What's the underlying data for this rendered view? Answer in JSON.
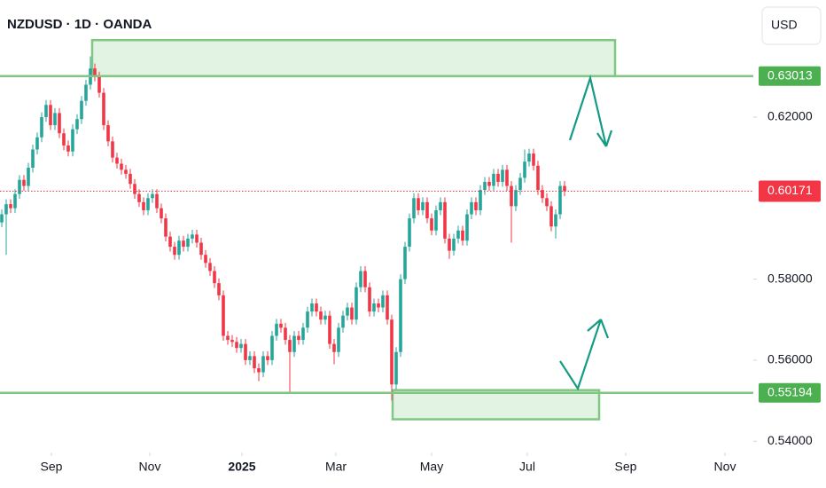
{
  "chart_data": {
    "type": "candlestick",
    "title": "NZDUSD · 1D · OANDA",
    "currency": "USD",
    "up_color": "#26a69a",
    "down_color": "#f23645",
    "level_color": "#81c784",
    "zone_color": "#e3f3e3",
    "ylim": [
      0.5372,
      0.6489
    ],
    "xlim": [
      -0.4,
      169.6
    ],
    "yticks": [
      {
        "value": 0.54,
        "label": "0.54000"
      },
      {
        "value": 0.56,
        "label": "0.56000"
      },
      {
        "value": 0.58,
        "label": "0.58000"
      },
      {
        "value": 0.62,
        "label": "0.62000"
      }
    ],
    "xticks": [
      {
        "value": 11.2,
        "label": "Sep"
      },
      {
        "value": 33.4,
        "label": "Nov"
      },
      {
        "value": 54.2,
        "label": "2025"
      },
      {
        "value": 75.4,
        "label": "Mar"
      },
      {
        "value": 97,
        "label": "May"
      },
      {
        "value": 118.6,
        "label": "Jul"
      },
      {
        "value": 140.8,
        "label": "Sep"
      },
      {
        "value": 163.2,
        "label": "Nov"
      }
    ],
    "levels": [
      {
        "value": 0.63013,
        "label": "0.63013"
      },
      {
        "value": 0.55194,
        "label": "0.55194"
      }
    ],
    "last_price": {
      "value": 0.60171,
      "label": "0.60171"
    },
    "zones": [
      {
        "x": [
          20.4,
          138.4
        ],
        "y": [
          0.6301,
          0.639
        ]
      },
      {
        "x": [
          88.2,
          134.8
        ],
        "y": [
          0.5454,
          0.5526
        ]
      }
    ],
    "open": [
      0.594,
      0.596,
      0.5985,
      0.5975,
      0.601,
      0.6045,
      0.603,
      0.6075,
      0.612,
      0.615,
      0.62,
      0.623,
      0.618,
      0.621,
      0.616,
      0.613,
      0.6115,
      0.617,
      0.6195,
      0.624,
      0.628,
      0.632,
      0.63,
      0.626,
      0.618,
      0.614,
      0.61,
      0.6085,
      0.607,
      0.606,
      0.6035,
      0.601,
      0.599,
      0.597,
      0.6,
      0.601,
      0.5975,
      0.595,
      0.5905,
      0.588,
      0.586,
      0.5895,
      0.588,
      0.59,
      0.591,
      0.589,
      0.586,
      0.584,
      0.582,
      0.579,
      0.576,
      0.566,
      0.565,
      0.5645,
      0.563,
      0.564,
      0.56,
      0.561,
      0.558,
      0.557,
      0.561,
      0.56,
      0.566,
      0.569,
      0.568,
      0.565,
      0.562,
      0.566,
      0.565,
      0.568,
      0.572,
      0.574,
      0.572,
      0.57,
      0.571,
      0.564,
      0.562,
      0.568,
      0.571,
      0.573,
      0.57,
      0.578,
      0.582,
      0.578,
      0.572,
      0.574,
      0.573,
      0.576,
      0.57,
      0.554,
      0.562,
      0.58,
      0.588,
      0.595,
      0.6,
      0.597,
      0.599,
      0.595,
      0.592,
      0.597,
      0.599,
      0.59,
      0.587,
      0.59,
      0.592,
      0.5895,
      0.596,
      0.599,
      0.597,
      0.602,
      0.604,
      0.603,
      0.606,
      0.604,
      0.607,
      0.603,
      0.598,
      0.602,
      0.605,
      0.609,
      0.611,
      0.608,
      0.602,
      0.6,
      0.598,
      0.593,
      0.596,
      0.603
    ],
    "high": [
      0.5972,
      0.5997,
      0.5997,
      0.6022,
      0.6057,
      0.6057,
      0.6087,
      0.6132,
      0.6162,
      0.6212,
      0.6242,
      0.6242,
      0.6222,
      0.6222,
      0.6172,
      0.6142,
      0.6182,
      0.6207,
      0.6252,
      0.6292,
      0.635,
      0.6332,
      0.6312,
      0.6272,
      0.6192,
      0.6152,
      0.6112,
      0.6097,
      0.6082,
      0.6072,
      0.6047,
      0.6022,
      0.6002,
      0.6012,
      0.6022,
      0.6022,
      0.5987,
      0.5962,
      0.5917,
      0.5892,
      0.5907,
      0.5907,
      0.5912,
      0.5922,
      0.5922,
      0.5902,
      0.5872,
      0.5852,
      0.5832,
      0.5802,
      0.5772,
      0.5672,
      0.5662,
      0.5657,
      0.5652,
      0.5652,
      0.5622,
      0.5622,
      0.5592,
      0.5622,
      0.5622,
      0.5672,
      0.5702,
      0.5702,
      0.5692,
      0.5662,
      0.5672,
      0.5672,
      0.5692,
      0.5732,
      0.5752,
      0.5752,
      0.5732,
      0.5722,
      0.5722,
      0.5652,
      0.5692,
      0.5722,
      0.5742,
      0.5742,
      0.5792,
      0.5832,
      0.5832,
      0.5792,
      0.5752,
      0.5752,
      0.5772,
      0.5772,
      0.5712,
      0.5632,
      0.5812,
      0.5892,
      0.5962,
      0.6012,
      0.6012,
      0.6002,
      0.6002,
      0.5962,
      0.5982,
      0.6002,
      0.6002,
      0.5912,
      0.5912,
      0.5932,
      0.5932,
      0.5972,
      0.6002,
      0.6002,
      0.6032,
      0.6052,
      0.6052,
      0.6072,
      0.6072,
      0.6082,
      0.6082,
      0.6042,
      0.6032,
      0.6062,
      0.612,
      0.6122,
      0.6122,
      0.6092,
      0.6032,
      0.6012,
      0.5992,
      0.5972,
      0.6042,
      0.6042
    ],
    "low": [
      0.5928,
      0.586,
      0.5963,
      0.5963,
      0.5998,
      0.6018,
      0.6018,
      0.6063,
      0.6108,
      0.6138,
      0.6188,
      0.6168,
      0.6168,
      0.6148,
      0.6118,
      0.6103,
      0.6103,
      0.6158,
      0.6183,
      0.6228,
      0.6268,
      0.6288,
      0.6248,
      0.6168,
      0.6128,
      0.6088,
      0.6073,
      0.6058,
      0.6048,
      0.6023,
      0.5998,
      0.5978,
      0.5958,
      0.5958,
      0.5988,
      0.5963,
      0.5938,
      0.5893,
      0.5868,
      0.5848,
      0.5848,
      0.5868,
      0.5868,
      0.5888,
      0.5878,
      0.5848,
      0.5828,
      0.5808,
      0.5778,
      0.5748,
      0.5648,
      0.5638,
      0.5633,
      0.5618,
      0.5618,
      0.5588,
      0.5588,
      0.5568,
      0.5548,
      0.5558,
      0.5588,
      0.5588,
      0.5648,
      0.5668,
      0.5638,
      0.552,
      0.5608,
      0.5638,
      0.5638,
      0.5668,
      0.5708,
      0.5708,
      0.5688,
      0.5688,
      0.5628,
      0.559,
      0.5608,
      0.5668,
      0.5698,
      0.5688,
      0.5688,
      0.5768,
      0.5768,
      0.5708,
      0.5708,
      0.5718,
      0.5718,
      0.5688,
      0.55,
      0.5528,
      0.5608,
      0.5788,
      0.5868,
      0.5938,
      0.5958,
      0.5958,
      0.5938,
      0.5908,
      0.5908,
      0.5958,
      0.5888,
      0.585,
      0.5858,
      0.5888,
      0.5883,
      0.5883,
      0.5948,
      0.5958,
      0.5958,
      0.6008,
      0.6018,
      0.6018,
      0.6028,
      0.6028,
      0.6018,
      0.589,
      0.5968,
      0.6008,
      0.6038,
      0.6078,
      0.6068,
      0.6008,
      0.5988,
      0.5968,
      0.5918,
      0.59,
      0.5948,
      0.6005
    ],
    "close": [
      0.596,
      0.5985,
      0.5975,
      0.601,
      0.6045,
      0.603,
      0.6075,
      0.612,
      0.615,
      0.62,
      0.623,
      0.618,
      0.621,
      0.616,
      0.613,
      0.6115,
      0.617,
      0.6195,
      0.624,
      0.628,
      0.632,
      0.63,
      0.626,
      0.618,
      0.614,
      0.61,
      0.6085,
      0.607,
      0.606,
      0.6035,
      0.601,
      0.599,
      0.597,
      0.6,
      0.601,
      0.5975,
      0.595,
      0.5905,
      0.588,
      0.586,
      0.5895,
      0.588,
      0.59,
      0.591,
      0.589,
      0.586,
      0.584,
      0.582,
      0.579,
      0.576,
      0.566,
      0.565,
      0.5645,
      0.563,
      0.564,
      0.56,
      0.561,
      0.558,
      0.557,
      0.561,
      0.56,
      0.566,
      0.569,
      0.568,
      0.565,
      0.562,
      0.566,
      0.565,
      0.568,
      0.572,
      0.574,
      0.572,
      0.57,
      0.571,
      0.564,
      0.562,
      0.568,
      0.571,
      0.573,
      0.57,
      0.578,
      0.582,
      0.578,
      0.572,
      0.574,
      0.573,
      0.576,
      0.57,
      0.554,
      0.562,
      0.58,
      0.588,
      0.595,
      0.6,
      0.597,
      0.599,
      0.595,
      0.592,
      0.597,
      0.599,
      0.59,
      0.587,
      0.59,
      0.592,
      0.5895,
      0.596,
      0.599,
      0.597,
      0.602,
      0.604,
      0.603,
      0.606,
      0.604,
      0.607,
      0.603,
      0.598,
      0.602,
      0.605,
      0.609,
      0.611,
      0.608,
      0.602,
      0.6,
      0.598,
      0.593,
      0.596,
      0.603,
      0.6017
    ]
  }
}
